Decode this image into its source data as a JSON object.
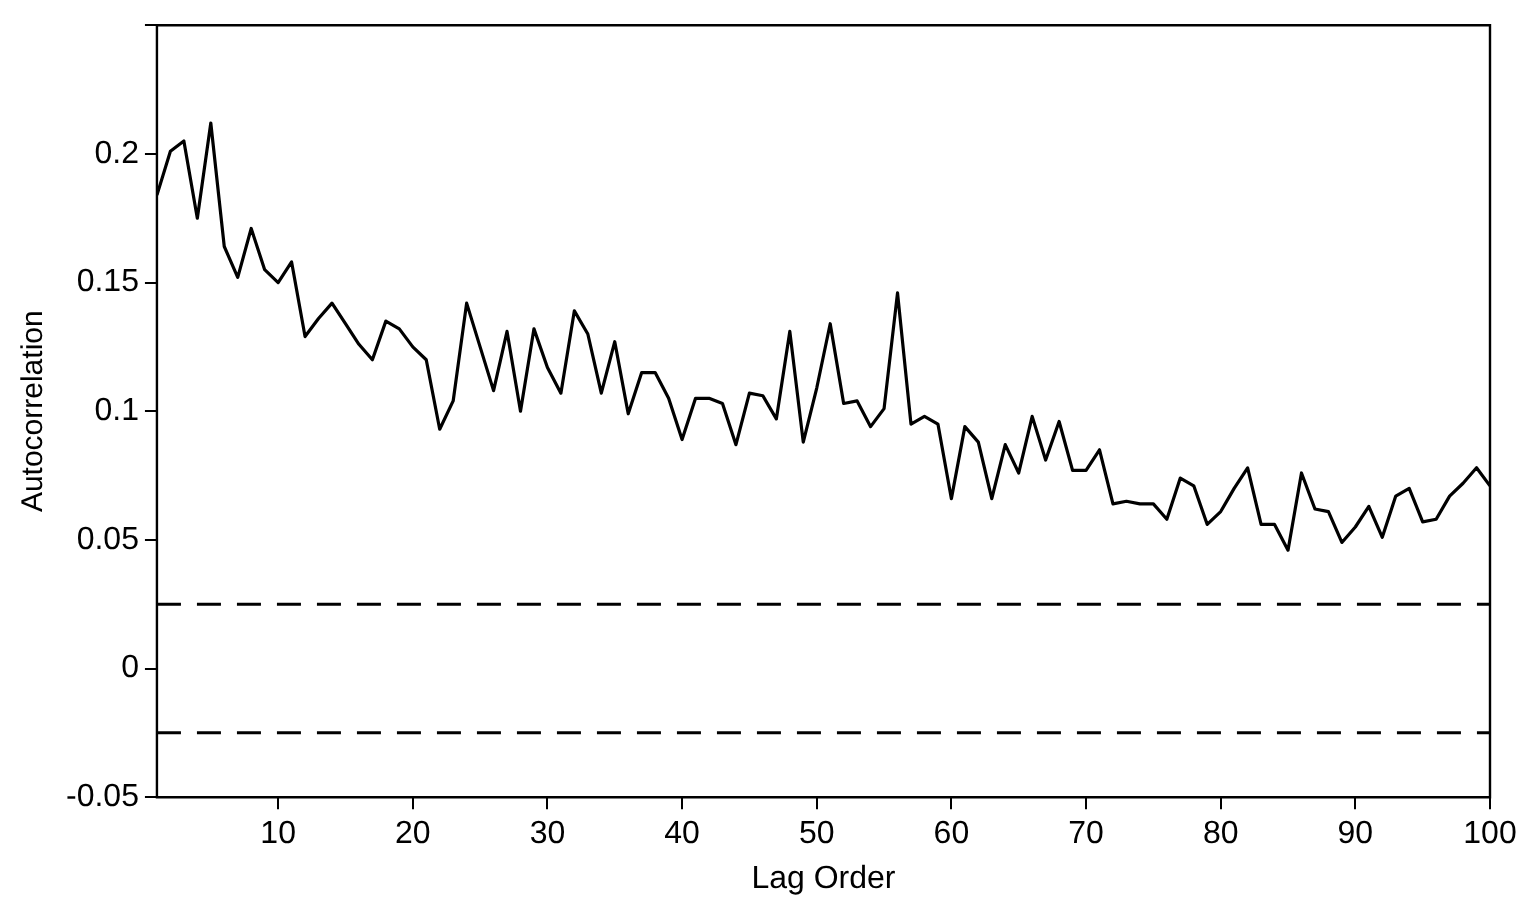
{
  "chart_data": {
    "type": "line",
    "xlabel": "Lag Order",
    "ylabel": "Autocorrelation",
    "x": [
      1,
      2,
      3,
      4,
      5,
      6,
      7,
      8,
      9,
      10,
      11,
      12,
      13,
      14,
      15,
      16,
      17,
      18,
      19,
      20,
      21,
      22,
      23,
      24,
      25,
      26,
      27,
      28,
      29,
      30,
      31,
      32,
      33,
      34,
      35,
      36,
      37,
      38,
      39,
      40,
      41,
      42,
      43,
      44,
      45,
      46,
      47,
      48,
      49,
      50,
      51,
      52,
      53,
      54,
      55,
      56,
      57,
      58,
      59,
      60,
      61,
      62,
      63,
      64,
      65,
      66,
      67,
      68,
      69,
      70,
      71,
      72,
      73,
      74,
      75,
      76,
      77,
      78,
      79,
      80,
      81,
      82,
      83,
      84,
      85,
      86,
      87,
      88,
      89,
      90,
      91,
      92,
      93,
      94,
      95,
      96,
      97,
      98,
      99,
      100
    ],
    "series": [
      {
        "color": "#000000",
        "values": [
          0.184,
          0.201,
          0.205,
          0.175,
          0.212,
          0.164,
          0.152,
          0.171,
          0.155,
          0.15,
          0.158,
          0.129,
          0.136,
          0.142,
          0.134,
          0.126,
          0.12,
          0.135,
          0.132,
          0.125,
          0.12,
          0.093,
          0.104,
          0.142,
          0.125,
          0.108,
          0.131,
          0.1,
          0.132,
          0.117,
          0.107,
          0.139,
          0.13,
          0.107,
          0.127,
          0.099,
          0.115,
          0.115,
          0.105,
          0.089,
          0.105,
          0.105,
          0.103,
          0.087,
          0.107,
          0.106,
          0.097,
          0.131,
          0.088,
          0.109,
          0.134,
          0.103,
          0.104,
          0.094,
          0.101,
          0.146,
          0.095,
          0.098,
          0.095,
          0.066,
          0.094,
          0.088,
          0.066,
          0.087,
          0.076,
          0.098,
          0.081,
          0.096,
          0.077,
          0.077,
          0.085,
          0.064,
          0.065,
          0.064,
          0.064,
          0.058,
          0.074,
          0.071,
          0.056,
          0.061,
          0.07,
          0.078,
          0.056,
          0.056,
          0.046,
          0.076,
          0.062,
          0.061,
          0.049,
          0.055,
          0.063,
          0.051,
          0.067,
          0.07,
          0.057,
          0.058,
          0.067,
          0.072,
          0.078,
          0.071
        ]
      }
    ],
    "xlim": [
      1,
      100
    ],
    "xticks": [
      10,
      20,
      30,
      40,
      50,
      60,
      70,
      80,
      90,
      100
    ],
    "ylim": [
      -0.05,
      0.25
    ],
    "yticks": [
      -0.05,
      0,
      0.05,
      0.1,
      0.15,
      0.2,
      {
        "value": 0.25,
        "label": null
      }
    ],
    "ref_lines": [
      {
        "axis": "y",
        "value": 0.025,
        "color": "#000000",
        "line_style": "dashed"
      },
      {
        "axis": "y",
        "value": -0.025,
        "color": "#000000",
        "line_style": "dashed"
      }
    ],
    "grid": false,
    "legend": false,
    "marker": "none",
    "line_style": "solid"
  }
}
